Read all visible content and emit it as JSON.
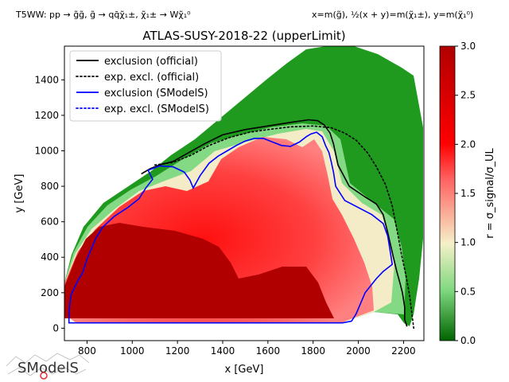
{
  "header": {
    "left": "T5WW: pp → g̃g̃, g̃ → qq̄χ̃₁±, χ̃₁± → Wχ̃₁⁰",
    "right": "x=m(g̃), ½(x + y)=m(χ̃₁±), y=m(χ̃₁⁰)"
  },
  "logo": {
    "text": "SModelS"
  },
  "chart_data": {
    "type": "heatmap",
    "title": "ATLAS-SUSY-2018-22 (upperLimit)",
    "xlabel": "x [GeV]",
    "ylabel": "y [GeV]",
    "xlim": [
      700,
      2290
    ],
    "ylim": [
      -70,
      1590
    ],
    "xticks": [
      800,
      1000,
      1200,
      1400,
      1600,
      1800,
      2000,
      2200
    ],
    "yticks": [
      0,
      200,
      400,
      600,
      800,
      1000,
      1200,
      1400
    ],
    "colorbar": {
      "label": "r = σ_signal/σ_UL",
      "range": [
        0,
        3
      ],
      "ticks": [
        0.0,
        0.5,
        1.0,
        1.5,
        2.0,
        2.5,
        3.0
      ],
      "colors": [
        "#006400",
        "#7fd87f",
        "#f5f0c8",
        "#ff6060",
        "#ff0000",
        "#b00000"
      ]
    },
    "grid": false,
    "legend_position": "top-left",
    "legend": [
      {
        "label": "exclusion (official)",
        "color": "#000000",
        "style": "solid"
      },
      {
        "label": "exp. excl. (official)",
        "color": "#000000",
        "style": "dotted"
      },
      {
        "label": "exclusion (SModelS)",
        "color": "#0000ff",
        "style": "solid"
      },
      {
        "label": "exp. excl. (SModelS)",
        "color": "#0000ff",
        "style": "dotted"
      }
    ],
    "series": [
      {
        "name": "exclusion (official)",
        "points": [
          [
            1040,
            870
          ],
          [
            1080,
            900
          ],
          [
            1120,
            920
          ],
          [
            1180,
            940
          ],
          [
            1250,
            990
          ],
          [
            1320,
            1040
          ],
          [
            1400,
            1090
          ],
          [
            1500,
            1120
          ],
          [
            1600,
            1140
          ],
          [
            1700,
            1160
          ],
          [
            1780,
            1175
          ],
          [
            1820,
            1170
          ],
          [
            1850,
            1145
          ],
          [
            1875,
            1100
          ],
          [
            1890,
            1040
          ],
          [
            1910,
            920
          ],
          [
            1960,
            800
          ],
          [
            2030,
            740
          ],
          [
            2080,
            700
          ],
          [
            2110,
            640
          ],
          [
            2130,
            540
          ],
          [
            2155,
            400
          ],
          [
            2170,
            320
          ],
          [
            2185,
            250
          ],
          [
            2195,
            200
          ],
          [
            2205,
            120
          ],
          [
            2205,
            50
          ],
          [
            2215,
            10
          ]
        ]
      },
      {
        "name": "exp. excl. (official)",
        "points": [
          [
            1100,
            920
          ],
          [
            1180,
            935
          ],
          [
            1260,
            975
          ],
          [
            1340,
            1030
          ],
          [
            1430,
            1075
          ],
          [
            1520,
            1105
          ],
          [
            1600,
            1120
          ],
          [
            1700,
            1135
          ],
          [
            1800,
            1140
          ],
          [
            1880,
            1130
          ],
          [
            1940,
            1100
          ],
          [
            1990,
            1060
          ],
          [
            2040,
            990
          ],
          [
            2080,
            910
          ],
          [
            2120,
            810
          ],
          [
            2150,
            690
          ],
          [
            2170,
            560
          ],
          [
            2190,
            420
          ],
          [
            2210,
            300
          ],
          [
            2225,
            200
          ],
          [
            2235,
            100
          ],
          [
            2245,
            0
          ]
        ]
      },
      {
        "name": "exclusion (SModelS)",
        "points": [
          [
            1070,
            890
          ],
          [
            1120,
            915
          ],
          [
            1180,
            910
          ],
          [
            1230,
            880
          ],
          [
            1255,
            835
          ],
          [
            1270,
            790
          ],
          [
            1300,
            860
          ],
          [
            1340,
            930
          ],
          [
            1380,
            970
          ],
          [
            1420,
            1000
          ],
          [
            1460,
            1030
          ],
          [
            1500,
            1055
          ],
          [
            1540,
            1070
          ],
          [
            1580,
            1070
          ],
          [
            1620,
            1050
          ],
          [
            1660,
            1030
          ],
          [
            1700,
            1025
          ],
          [
            1740,
            1050
          ],
          [
            1770,
            1080
          ],
          [
            1790,
            1095
          ],
          [
            1815,
            1105
          ],
          [
            1840,
            1080
          ],
          [
            1855,
            1030
          ],
          [
            1870,
            990
          ],
          [
            1880,
            940
          ],
          [
            1890,
            880
          ],
          [
            1900,
            800
          ],
          [
            1940,
            720
          ],
          [
            2000,
            680
          ],
          [
            2060,
            640
          ],
          [
            2110,
            590
          ],
          [
            2130,
            520
          ],
          [
            2140,
            440
          ],
          [
            2150,
            360
          ],
          [
            2110,
            320
          ],
          [
            2080,
            280
          ],
          [
            2055,
            240
          ],
          [
            2030,
            200
          ],
          [
            2010,
            140
          ],
          [
            1990,
            80
          ],
          [
            1970,
            40
          ],
          [
            1930,
            30
          ],
          [
            720,
            30
          ],
          [
            720,
            80
          ],
          [
            725,
            150
          ],
          [
            730,
            190
          ],
          [
            745,
            230
          ],
          [
            760,
            270
          ],
          [
            780,
            310
          ],
          [
            800,
            390
          ],
          [
            820,
            450
          ],
          [
            840,
            510
          ],
          [
            870,
            570
          ],
          [
            920,
            630
          ],
          [
            980,
            680
          ],
          [
            1030,
            730
          ],
          [
            1060,
            790
          ],
          [
            1090,
            840
          ],
          [
            1070,
            890
          ]
        ]
      }
    ]
  }
}
